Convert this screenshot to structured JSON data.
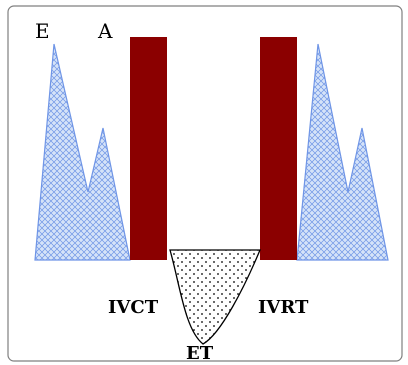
{
  "labels": {
    "e": "E",
    "a": "A",
    "ivct": "IVCT",
    "ivrt": "IVRT",
    "et": "ET"
  },
  "colors": {
    "wave_fill": "#c9dcf6",
    "wave_stroke": "#6f95e6",
    "bar_fill": "#8b0000",
    "frame": "#7f7f7f",
    "ejection_stroke": "#000000",
    "dots": "#000000"
  }
}
